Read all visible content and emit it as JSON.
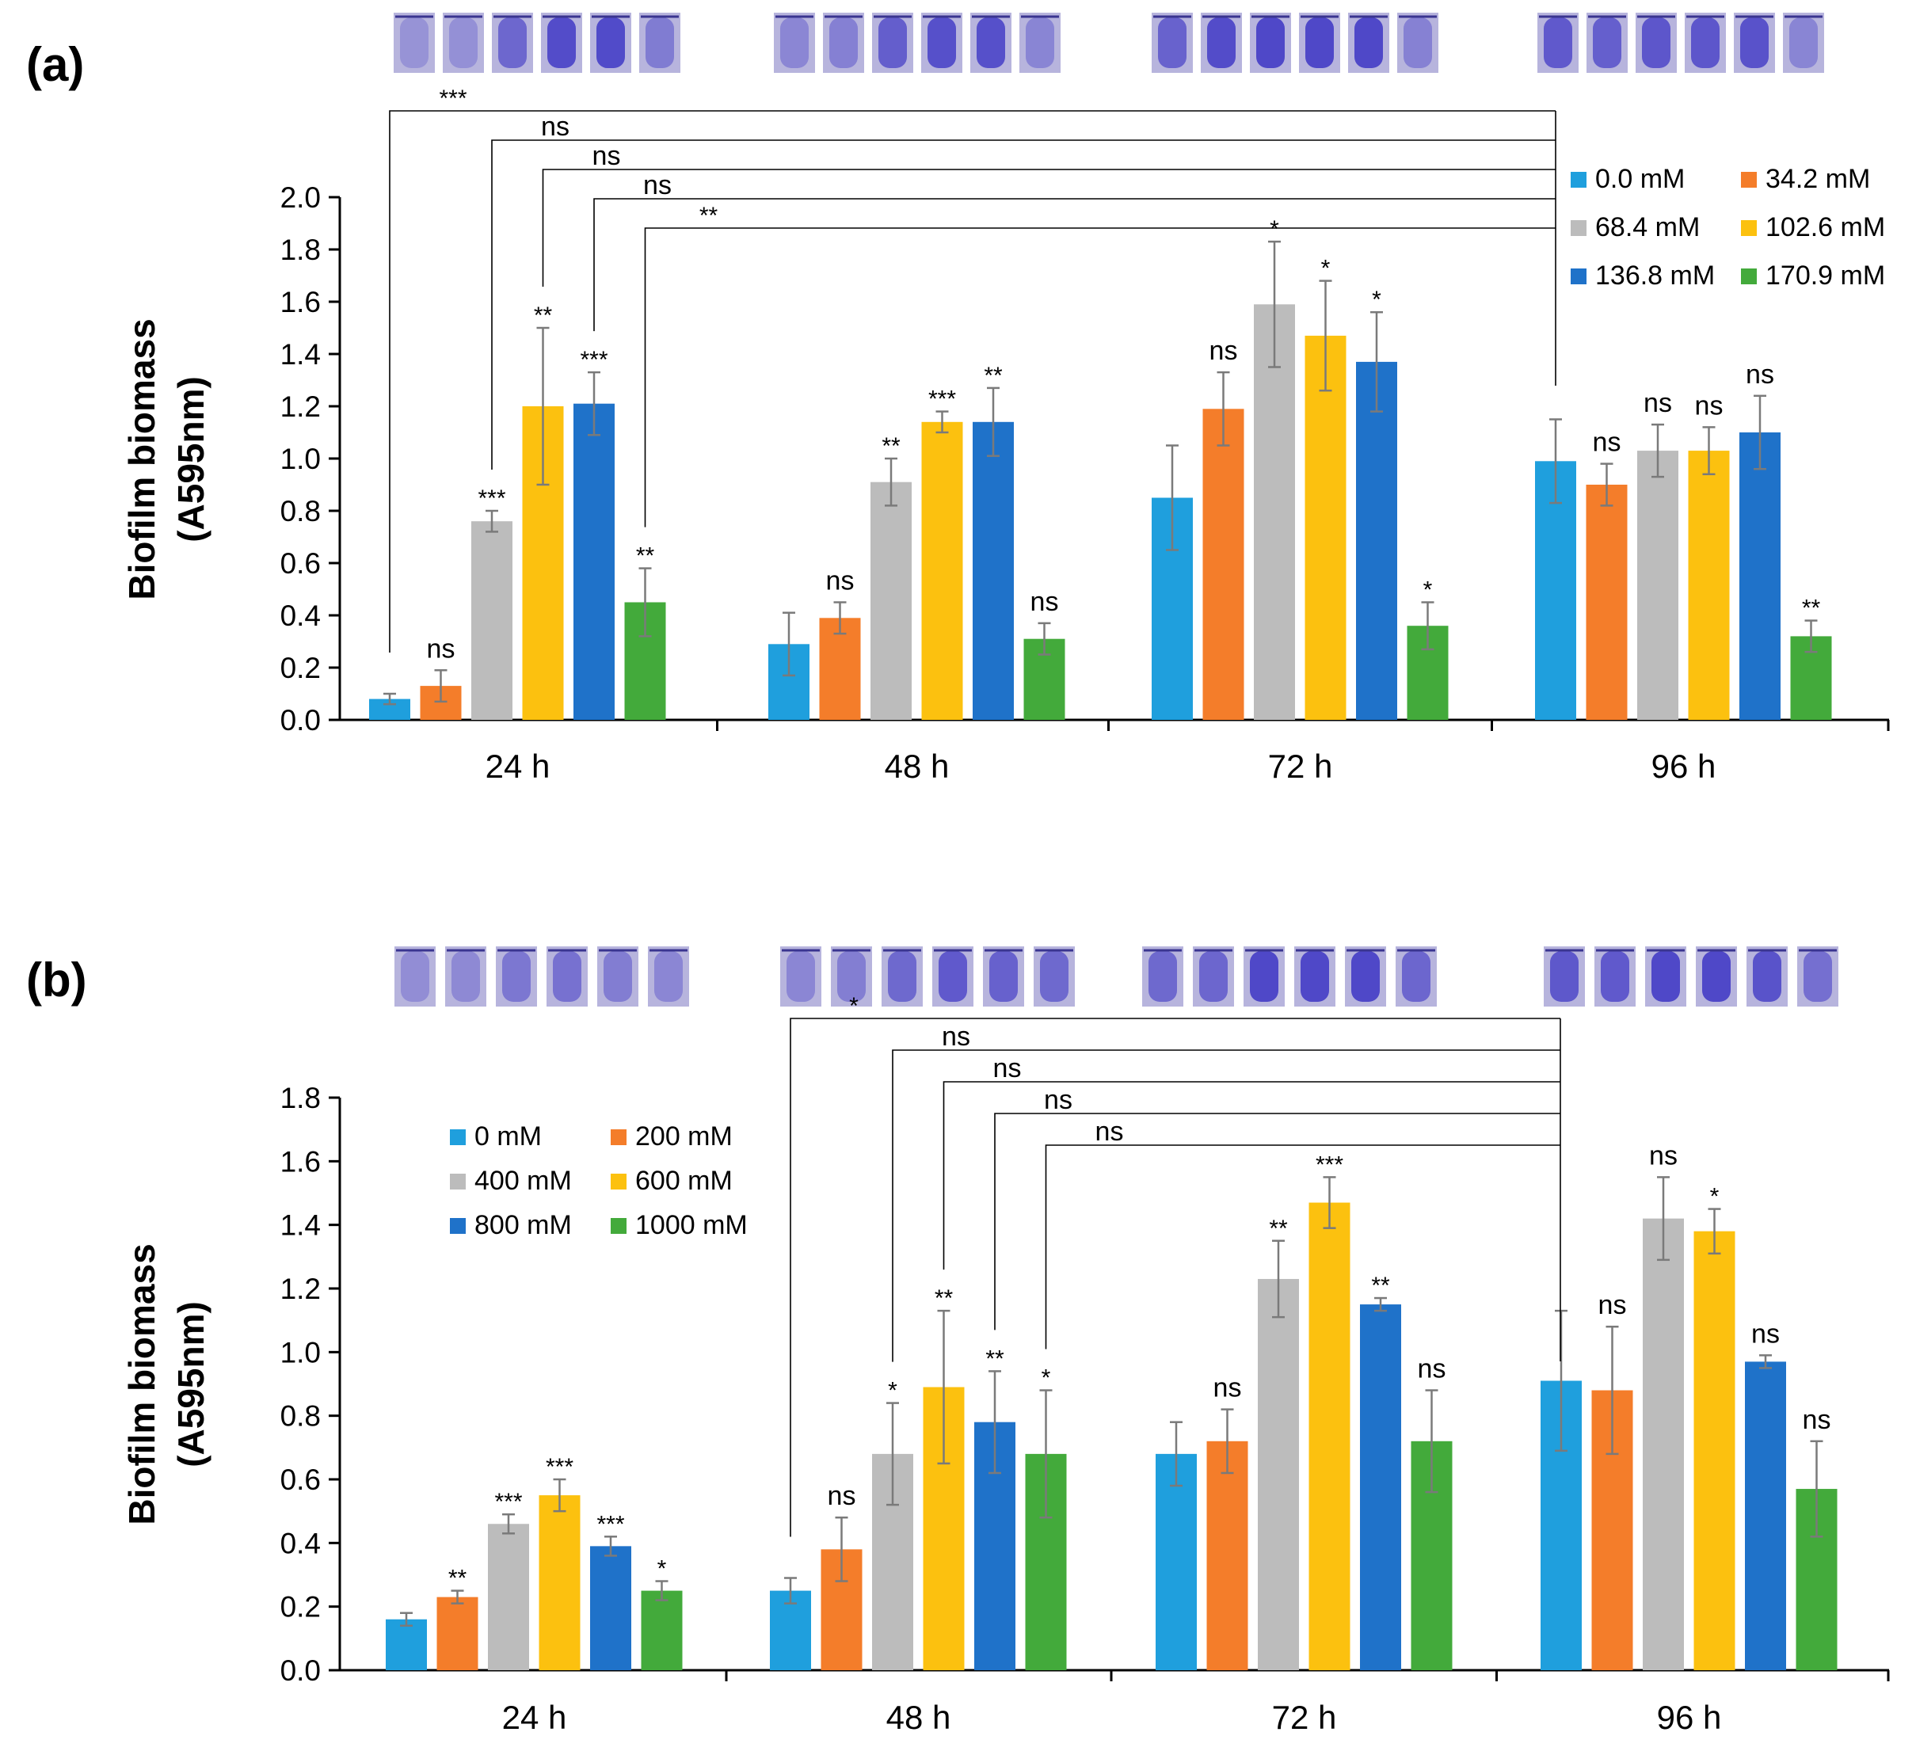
{
  "colors": {
    "palette": [
      "#1f9fdd",
      "#f47d2a",
      "#bcbcbc",
      "#fcc10f",
      "#1f72c9",
      "#43aa3b"
    ],
    "axis": "#000000",
    "error": "#7a7a7a",
    "well_fill": "#4f48c8",
    "well_bg": "#b7b4dd"
  },
  "chart_data": [
    {
      "panel_label": "(a)",
      "type": "bar",
      "title": "",
      "xlabel": "",
      "ylabel": "Biofilm biomass",
      "ylabel_unit": "(A595nm)",
      "ylim": [
        0,
        2.0
      ],
      "yticks": [
        "0.0",
        "0.2",
        "0.4",
        "0.6",
        "0.8",
        "1.0",
        "1.2",
        "1.4",
        "1.6",
        "1.8",
        "2.0"
      ],
      "categories": [
        "24 h",
        "48 h",
        "72 h",
        "96 h"
      ],
      "legend_position": "top-right",
      "series": [
        {
          "name": "0.0 mM",
          "values": [
            0.08,
            0.29,
            0.85,
            0.99
          ],
          "errors": [
            0.02,
            0.12,
            0.2,
            0.16
          ],
          "sig": [
            "",
            "",
            "",
            ""
          ]
        },
        {
          "name": "34.2 mM",
          "values": [
            0.13,
            0.39,
            1.19,
            0.9
          ],
          "errors": [
            0.06,
            0.06,
            0.14,
            0.08
          ],
          "sig": [
            "ns",
            "ns",
            "ns",
            "ns"
          ]
        },
        {
          "name": "68.4 mM",
          "values": [
            0.76,
            0.91,
            1.59,
            1.03
          ],
          "errors": [
            0.04,
            0.09,
            0.24,
            0.1
          ],
          "sig": [
            "***",
            "**",
            "*",
            "ns"
          ]
        },
        {
          "name": "102.6 mM",
          "values": [
            1.2,
            1.14,
            1.47,
            1.03
          ],
          "errors": [
            0.3,
            0.04,
            0.21,
            0.09
          ],
          "sig": [
            "**",
            "***",
            "*",
            "ns"
          ]
        },
        {
          "name": "136.8 mM",
          "values": [
            1.21,
            1.14,
            1.37,
            1.1
          ],
          "errors": [
            0.12,
            0.13,
            0.19,
            0.14
          ],
          "sig": [
            "***",
            "**",
            "*",
            "ns"
          ]
        },
        {
          "name": "170.9 mM",
          "values": [
            0.45,
            0.31,
            0.36,
            0.32
          ],
          "errors": [
            0.13,
            0.06,
            0.09,
            0.06
          ],
          "sig": [
            "**",
            "ns",
            "*",
            "**"
          ]
        }
      ],
      "comparisons": [
        {
          "from_series": 0,
          "label": "***"
        },
        {
          "from_series": 2,
          "label": "ns"
        },
        {
          "from_series": 3,
          "label": "ns"
        },
        {
          "from_series": 4,
          "label": "ns"
        },
        {
          "from_series": 5,
          "label": "**"
        }
      ],
      "comparison_groups": {
        "from": 0,
        "to": 3
      }
    },
    {
      "panel_label": "(b)",
      "type": "bar",
      "title": "",
      "xlabel": "",
      "ylabel": "Biofilm biomass",
      "ylabel_unit": "(A595nm)",
      "ylim": [
        0,
        1.8
      ],
      "yticks": [
        "0.0",
        "0.2",
        "0.4",
        "0.6",
        "0.8",
        "1.0",
        "1.2",
        "1.4",
        "1.6",
        "1.8"
      ],
      "categories": [
        "24 h",
        "48 h",
        "72 h",
        "96 h"
      ],
      "legend_position": "top-left",
      "series": [
        {
          "name": "0 mM",
          "values": [
            0.16,
            0.25,
            0.68,
            0.91
          ],
          "errors": [
            0.02,
            0.04,
            0.1,
            0.22
          ],
          "sig": [
            "",
            "",
            "",
            ""
          ]
        },
        {
          "name": "200 mM",
          "values": [
            0.23,
            0.38,
            0.72,
            0.88
          ],
          "errors": [
            0.02,
            0.1,
            0.1,
            0.2
          ],
          "sig": [
            "**",
            "ns",
            "ns",
            "ns"
          ]
        },
        {
          "name": "400 mM",
          "values": [
            0.46,
            0.68,
            1.23,
            1.42
          ],
          "errors": [
            0.03,
            0.16,
            0.12,
            0.13
          ],
          "sig": [
            "***",
            "*",
            "**",
            "ns"
          ]
        },
        {
          "name": "600 mM",
          "values": [
            0.55,
            0.89,
            1.47,
            1.38
          ],
          "errors": [
            0.05,
            0.24,
            0.08,
            0.07
          ],
          "sig": [
            "***",
            "**",
            "***",
            "*"
          ]
        },
        {
          "name": "800 mM",
          "values": [
            0.39,
            0.78,
            1.15,
            0.97
          ],
          "errors": [
            0.03,
            0.16,
            0.02,
            0.02
          ],
          "sig": [
            "***",
            "**",
            "**",
            "ns"
          ]
        },
        {
          "name": "1000 mM",
          "values": [
            0.25,
            0.68,
            0.72,
            0.57
          ],
          "errors": [
            0.03,
            0.2,
            0.16,
            0.15
          ],
          "sig": [
            "*",
            "*",
            "ns",
            "ns"
          ]
        }
      ],
      "comparisons": [
        {
          "from_series": 0,
          "label": "*"
        },
        {
          "from_series": 2,
          "label": "ns"
        },
        {
          "from_series": 3,
          "label": "ns"
        },
        {
          "from_series": 4,
          "label": "ns"
        },
        {
          "from_series": 5,
          "label": "ns"
        }
      ],
      "comparison_groups": {
        "from": 1,
        "to": 3
      }
    }
  ]
}
